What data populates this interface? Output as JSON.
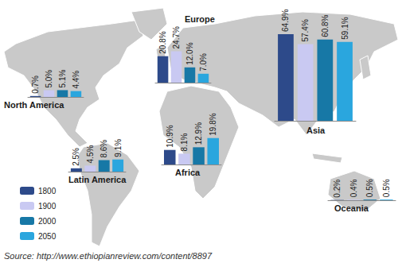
{
  "chart_data": [
    {
      "type": "bar",
      "title": "North America",
      "categories": [
        null
      ],
      "series": [
        {
          "name": "1800",
          "color": "#2d4a8a",
          "values": [
            0.7
          ],
          "value_labels": [
            "0.7%"
          ]
        },
        {
          "name": "1900",
          "color": "#c9c9f2",
          "values": [
            5.0
          ],
          "value_labels": [
            "5.0%"
          ]
        },
        {
          "name": "2000",
          "color": "#1778a6",
          "values": [
            5.1
          ],
          "value_labels": [
            "5.1%"
          ]
        },
        {
          "name": "2050",
          "color": "#2aa6de",
          "values": [
            4.4
          ],
          "value_labels": [
            "4.4%"
          ]
        }
      ],
      "ylim": [
        0,
        65
      ],
      "data_labels": true,
      "tick_labels": false,
      "grid": false,
      "legend": "bottom-left"
    },
    {
      "type": "bar",
      "title": "Europe",
      "categories": [
        null
      ],
      "series": [
        {
          "name": "1800",
          "color": "#2d4a8a",
          "values": [
            20.8
          ],
          "value_labels": [
            "20.8%"
          ]
        },
        {
          "name": "1900",
          "color": "#c9c9f2",
          "values": [
            24.7
          ],
          "value_labels": [
            "24.7%"
          ]
        },
        {
          "name": "2000",
          "color": "#1778a6",
          "values": [
            12.0
          ],
          "value_labels": [
            "12.0%"
          ]
        },
        {
          "name": "2050",
          "color": "#2aa6de",
          "values": [
            7.0
          ],
          "value_labels": [
            "7.0%"
          ]
        }
      ],
      "ylim": [
        0,
        65
      ],
      "data_labels": true,
      "tick_labels": false,
      "grid": false
    },
    {
      "type": "bar",
      "title": "Asia",
      "categories": [
        null
      ],
      "series": [
        {
          "name": "1800",
          "color": "#2d4a8a",
          "values": [
            64.9
          ],
          "value_labels": [
            "64.9%"
          ]
        },
        {
          "name": "1900",
          "color": "#c9c9f2",
          "values": [
            57.4
          ],
          "value_labels": [
            "57.4%"
          ]
        },
        {
          "name": "2000",
          "color": "#1778a6",
          "values": [
            60.8
          ],
          "value_labels": [
            "60.8%"
          ]
        },
        {
          "name": "2050",
          "color": "#2aa6de",
          "values": [
            59.1
          ],
          "value_labels": [
            "59.1%"
          ]
        }
      ],
      "ylim": [
        0,
        65
      ],
      "data_labels": true,
      "tick_labels": false,
      "grid": false
    },
    {
      "type": "bar",
      "title": "Latin America",
      "categories": [
        null
      ],
      "series": [
        {
          "name": "1800",
          "color": "#2d4a8a",
          "values": [
            2.5
          ],
          "value_labels": [
            "2.5%"
          ]
        },
        {
          "name": "1900",
          "color": "#c9c9f2",
          "values": [
            4.5
          ],
          "value_labels": [
            "4.5%"
          ]
        },
        {
          "name": "2000",
          "color": "#1778a6",
          "values": [
            8.6
          ],
          "value_labels": [
            "8.6%"
          ]
        },
        {
          "name": "2050",
          "color": "#2aa6de",
          "values": [
            9.1
          ],
          "value_labels": [
            "9.1%"
          ]
        }
      ],
      "ylim": [
        0,
        65
      ],
      "data_labels": true,
      "tick_labels": false,
      "grid": false
    },
    {
      "type": "bar",
      "title": "Africa",
      "categories": [
        null
      ],
      "series": [
        {
          "name": "1800",
          "color": "#2d4a8a",
          "values": [
            10.9
          ],
          "value_labels": [
            "10.9%"
          ]
        },
        {
          "name": "1900",
          "color": "#c9c9f2",
          "values": [
            8.1
          ],
          "value_labels": [
            "8.1%"
          ]
        },
        {
          "name": "2000",
          "color": "#1778a6",
          "values": [
            12.9
          ],
          "value_labels": [
            "12.9%"
          ]
        },
        {
          "name": "2050",
          "color": "#2aa6de",
          "values": [
            19.8
          ],
          "value_labels": [
            "19.8%"
          ]
        }
      ],
      "ylim": [
        0,
        65
      ],
      "data_labels": true,
      "tick_labels": false,
      "grid": false
    },
    {
      "type": "bar",
      "title": "Oceania",
      "categories": [
        null
      ],
      "series": [
        {
          "name": "1800",
          "color": "#2d4a8a",
          "values": [
            0.2
          ],
          "value_labels": [
            "0.2%"
          ]
        },
        {
          "name": "1900",
          "color": "#c9c9f2",
          "values": [
            0.4
          ],
          "value_labels": [
            "0.4%"
          ]
        },
        {
          "name": "2000",
          "color": "#1778a6",
          "values": [
            0.5
          ],
          "value_labels": [
            "0.5%"
          ]
        },
        {
          "name": "2050",
          "color": "#2aa6de",
          "values": [
            0.5
          ],
          "value_labels": [
            "0.5%"
          ]
        }
      ],
      "ylim": [
        0,
        65
      ],
      "data_labels": true,
      "tick_labels": false,
      "grid": false
    }
  ],
  "source": "Source: http://www.ethiopianreview.com/content/8897"
}
